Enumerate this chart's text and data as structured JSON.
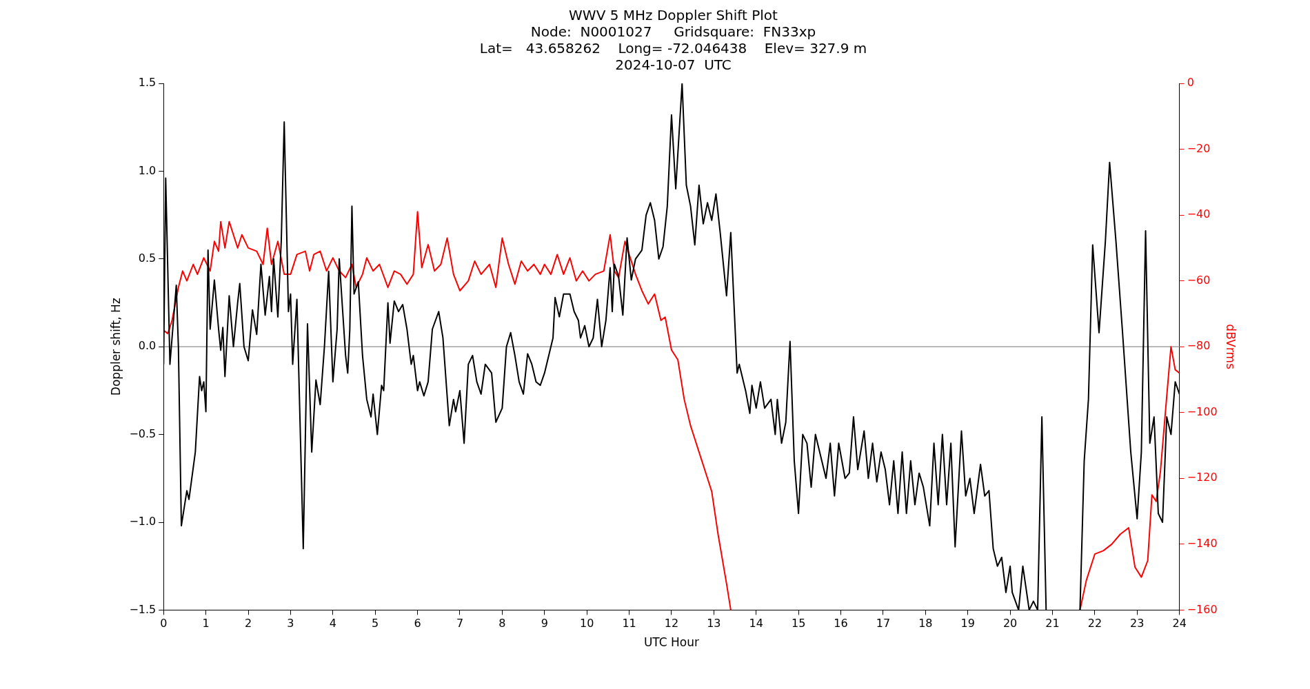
{
  "chart_data": {
    "type": "line",
    "title": "WWV 5 MHz Doppler Shift Plot",
    "subtitle": "Node:  N0001027     Gridsquare:  FN33xp\nLat=   43.658262    Long= -72.046438    Elev= 327.9 m\n2024-10-07  UTC",
    "xlabel": "UTC Hour",
    "ylabel": "Doppler shift, Hz",
    "y2label": "dBVrms",
    "xlim": [
      0,
      24
    ],
    "xticks": [
      0,
      1,
      2,
      3,
      4,
      5,
      6,
      7,
      8,
      9,
      10,
      11,
      12,
      13,
      14,
      15,
      16,
      17,
      18,
      19,
      20,
      21,
      22,
      23,
      24
    ],
    "ylim": [
      -1.5,
      1.5
    ],
    "yticks": [
      {
        "value": -1.5,
        "label": "−1.5"
      },
      {
        "value": -1,
        "label": "−1.0"
      },
      {
        "value": -0.5,
        "label": "−0.5"
      },
      {
        "value": 0,
        "label": "0.0"
      },
      {
        "value": 0.5,
        "label": "0.5"
      },
      {
        "value": 1,
        "label": "1.0"
      },
      {
        "value": 1.5,
        "label": "1.5"
      }
    ],
    "y2lim": [
      -160,
      0
    ],
    "y2ticks": [
      {
        "value": -160,
        "label": "−160"
      },
      {
        "value": -140,
        "label": "−140"
      },
      {
        "value": -120,
        "label": "−120"
      },
      {
        "value": -100,
        "label": "−100"
      },
      {
        "value": -80,
        "label": "−80"
      },
      {
        "value": -60,
        "label": "−60"
      },
      {
        "value": -40,
        "label": "−40"
      },
      {
        "value": -20,
        "label": "−20"
      },
      0
    ],
    "legend": false,
    "line_style": "solid",
    "marker": "none",
    "ref_lines": [
      {
        "axis": "y",
        "value": 0,
        "color": "#a0a0a0"
      }
    ],
    "series": [
      {
        "color": "#000000",
        "axis": "y",
        "x": [
          0,
          0.05,
          0.15,
          0.3,
          0.35,
          0.42,
          0.55,
          0.6,
          0.75,
          0.85,
          0.9,
          0.95,
          1,
          1.05,
          1.1,
          1.2,
          1.3,
          1.35,
          1.4,
          1.45,
          1.55,
          1.65,
          1.75,
          1.8,
          1.9,
          2,
          2.1,
          2.2,
          2.3,
          2.4,
          2.5,
          2.55,
          2.6,
          2.7,
          2.78,
          2.85,
          2.95,
          3,
          3.05,
          3.15,
          3.3,
          3.4,
          3.5,
          3.6,
          3.7,
          3.8,
          3.9,
          4,
          4.1,
          4.15,
          4.3,
          4.35,
          4.4,
          4.45,
          4.5,
          4.6,
          4.7,
          4.8,
          4.9,
          4.95,
          5.05,
          5.15,
          5.2,
          5.3,
          5.35,
          5.45,
          5.55,
          5.65,
          5.75,
          5.85,
          5.9,
          6,
          6.05,
          6.15,
          6.25,
          6.35,
          6.5,
          6.6,
          6.75,
          6.85,
          6.9,
          7,
          7.1,
          7.2,
          7.3,
          7.4,
          7.5,
          7.6,
          7.75,
          7.85,
          8,
          8.1,
          8.2,
          8.3,
          8.4,
          8.5,
          8.6,
          8.7,
          8.8,
          8.9,
          9,
          9.1,
          9.2,
          9.25,
          9.35,
          9.45,
          9.6,
          9.7,
          9.8,
          9.85,
          9.95,
          10.05,
          10.15,
          10.25,
          10.35,
          10.45,
          10.55,
          10.6,
          10.65,
          10.75,
          10.85,
          10.95,
          11.05,
          11.15,
          11.3,
          11.4,
          11.5,
          11.6,
          11.7,
          11.8,
          11.9,
          12,
          12.1,
          12.25,
          12.35,
          12.45,
          12.55,
          12.65,
          12.75,
          12.85,
          12.95,
          13.05,
          13.15,
          13.3,
          13.4,
          13.55,
          13.6,
          13.75,
          13.85,
          13.9,
          14,
          14.1,
          14.2,
          14.35,
          14.45,
          14.5,
          14.6,
          14.7,
          14.8,
          14.9,
          15,
          15.1,
          15.2,
          15.3,
          15.4,
          15.55,
          15.65,
          15.75,
          15.85,
          15.95,
          16.1,
          16.2,
          16.3,
          16.4,
          16.55,
          16.65,
          16.75,
          16.85,
          16.95,
          17.05,
          17.15,
          17.25,
          17.35,
          17.45,
          17.55,
          17.65,
          17.75,
          17.85,
          17.95,
          18.1,
          18.2,
          18.3,
          18.4,
          18.5,
          18.6,
          18.7,
          18.85,
          18.95,
          19.05,
          19.15,
          19.3,
          19.4,
          19.5,
          19.6,
          19.7,
          19.8,
          19.9,
          20,
          20.05,
          20.2,
          20.3,
          20.45,
          20.55,
          20.65,
          20.75,
          20.85,
          21.2,
          21.65,
          21.75,
          21.85,
          21.95,
          22.1,
          22.25,
          22.35,
          22.5,
          22.65,
          22.85,
          23,
          23.1,
          23.2,
          23.3,
          23.4,
          23.5,
          23.6,
          23.7,
          23.8,
          23.9,
          24
        ],
        "values": [
          -0.1,
          0.96,
          -0.1,
          0.35,
          0,
          -1.02,
          -0.82,
          -0.87,
          -0.6,
          -0.17,
          -0.25,
          -0.2,
          -0.37,
          0.55,
          0.1,
          0.38,
          0.1,
          -0.02,
          0.11,
          -0.17,
          0.29,
          0,
          0.25,
          0.36,
          0,
          -0.08,
          0.21,
          0.07,
          0.47,
          0.18,
          0.4,
          0.2,
          0.5,
          0.17,
          0.6,
          1.28,
          0.2,
          0.3,
          -0.1,
          0.27,
          -1.15,
          0.13,
          -0.6,
          -0.19,
          -0.33,
          0,
          0.43,
          -0.2,
          0.1,
          0.5,
          -0.05,
          -0.15,
          0.1,
          0.8,
          0.3,
          0.37,
          -0.05,
          -0.3,
          -0.4,
          -0.27,
          -0.5,
          -0.22,
          -0.25,
          0.25,
          0.02,
          0.26,
          0.2,
          0.24,
          0.1,
          -0.1,
          -0.05,
          -0.25,
          -0.2,
          -0.28,
          -0.2,
          0.1,
          0.2,
          0.05,
          -0.45,
          -0.3,
          -0.37,
          -0.25,
          -0.55,
          -0.1,
          -0.05,
          -0.2,
          -0.27,
          -0.1,
          -0.15,
          -0.43,
          -0.35,
          0,
          0.08,
          -0.05,
          -0.2,
          -0.27,
          -0.04,
          -0.1,
          -0.2,
          -0.22,
          -0.15,
          -0.05,
          0.05,
          0.28,
          0.17,
          0.3,
          0.3,
          0.2,
          0.15,
          0.05,
          0.12,
          0,
          0.05,
          0.27,
          0,
          0.15,
          0.45,
          0.2,
          0.47,
          0.4,
          0.18,
          0.62,
          0.38,
          0.5,
          0.55,
          0.75,
          0.82,
          0.72,
          0.5,
          0.57,
          0.8,
          1.32,
          0.9,
          1.5,
          0.92,
          0.8,
          0.58,
          0.92,
          0.7,
          0.82,
          0.72,
          0.87,
          0.65,
          0.29,
          0.65,
          -0.15,
          -0.1,
          -0.25,
          -0.38,
          -0.22,
          -0.35,
          -0.2,
          -0.35,
          -0.3,
          -0.5,
          -0.3,
          -0.55,
          -0.43,
          0.03,
          -0.65,
          -0.95,
          -0.5,
          -0.55,
          -0.8,
          -0.5,
          -0.65,
          -0.75,
          -0.55,
          -0.85,
          -0.55,
          -0.75,
          -0.72,
          -0.4,
          -0.7,
          -0.48,
          -0.75,
          -0.55,
          -0.77,
          -0.6,
          -0.7,
          -0.9,
          -0.65,
          -0.95,
          -0.6,
          -0.95,
          -0.65,
          -0.9,
          -0.72,
          -0.8,
          -1.02,
          -0.55,
          -0.9,
          -0.5,
          -0.9,
          -0.55,
          -1.14,
          -0.48,
          -0.85,
          -0.75,
          -0.95,
          -0.67,
          -0.85,
          -0.82,
          -1.15,
          -1.25,
          -1.2,
          -1.4,
          -1.25,
          -1.4,
          -1.5,
          -1.25,
          -1.5,
          -1.45,
          -1.5,
          -0.4,
          -1.5,
          null,
          -1.5,
          -0.65,
          -0.3,
          0.58,
          0.08,
          0.6,
          1.05,
          0.6,
          0.1,
          -0.6,
          -0.98,
          -0.6,
          0.66,
          -0.55,
          -0.4,
          -0.95,
          -1,
          -0.4,
          -0.5,
          -0.2,
          -0.27
        ]
      },
      {
        "color": "#ff0000",
        "axis": "y2",
        "x": [
          0,
          0.1,
          0.2,
          0.35,
          0.45,
          0.55,
          0.7,
          0.8,
          0.95,
          1.1,
          1.2,
          1.3,
          1.35,
          1.45,
          1.55,
          1.65,
          1.75,
          1.85,
          2,
          2.2,
          2.35,
          2.45,
          2.55,
          2.7,
          2.85,
          3,
          3.15,
          3.35,
          3.45,
          3.55,
          3.7,
          3.85,
          4,
          4.15,
          4.3,
          4.45,
          4.55,
          4.7,
          4.8,
          4.95,
          5.1,
          5.3,
          5.45,
          5.6,
          5.75,
          5.9,
          6,
          6.1,
          6.25,
          6.4,
          6.55,
          6.7,
          6.85,
          7,
          7.2,
          7.35,
          7.5,
          7.7,
          7.85,
          8,
          8.15,
          8.3,
          8.45,
          8.6,
          8.75,
          8.9,
          9,
          9.15,
          9.3,
          9.45,
          9.6,
          9.75,
          9.9,
          10.05,
          10.2,
          10.4,
          10.55,
          10.65,
          10.75,
          10.9,
          11,
          11.15,
          11.3,
          11.45,
          11.6,
          11.75,
          11.85,
          12,
          12.15,
          12.3,
          12.45,
          12.55,
          12.7,
          12.85,
          12.95,
          13.1,
          13.3,
          13.4,
          17.5,
          21.65,
          21.8,
          22,
          22.2,
          22.4,
          22.6,
          22.8,
          22.95,
          23.1,
          23.25,
          23.35,
          23.45,
          23.55,
          23.7,
          23.8,
          23.9,
          24
        ],
        "values": [
          -75,
          -76,
          -72,
          -62,
          -57,
          -60,
          -55,
          -58,
          -53,
          -57,
          -48,
          -51,
          -42,
          -50,
          -42,
          -46,
          -50,
          -46,
          -50,
          -51,
          -55,
          -44,
          -55,
          -48,
          -58,
          -58,
          -52,
          -51,
          -57,
          -52,
          -51,
          -57,
          -53,
          -57,
          -59,
          -55,
          -62,
          -58,
          -53,
          -57,
          -55,
          -62,
          -57,
          -58,
          -61,
          -58,
          -39,
          -56,
          -49,
          -57,
          -55,
          -47,
          -58,
          -63,
          -60,
          -54,
          -58,
          -55,
          -62,
          -47,
          -55,
          -61,
          -54,
          -57,
          -55,
          -58,
          -55,
          -58,
          -52,
          -58,
          -53,
          -60,
          -57,
          -60,
          -58,
          -57,
          -46,
          -57,
          -59,
          -48,
          -52,
          -58,
          -63,
          -67,
          -64,
          -72,
          -71,
          -81,
          -84,
          -96,
          -104,
          -108,
          -114,
          -120,
          -124,
          -137,
          -152,
          -160,
          null,
          -160,
          -151,
          -143,
          -142,
          -140,
          -137,
          -135,
          -147,
          -150,
          -145,
          -125,
          -127,
          -118,
          -95,
          -80,
          -87,
          -88
        ]
      }
    ]
  }
}
